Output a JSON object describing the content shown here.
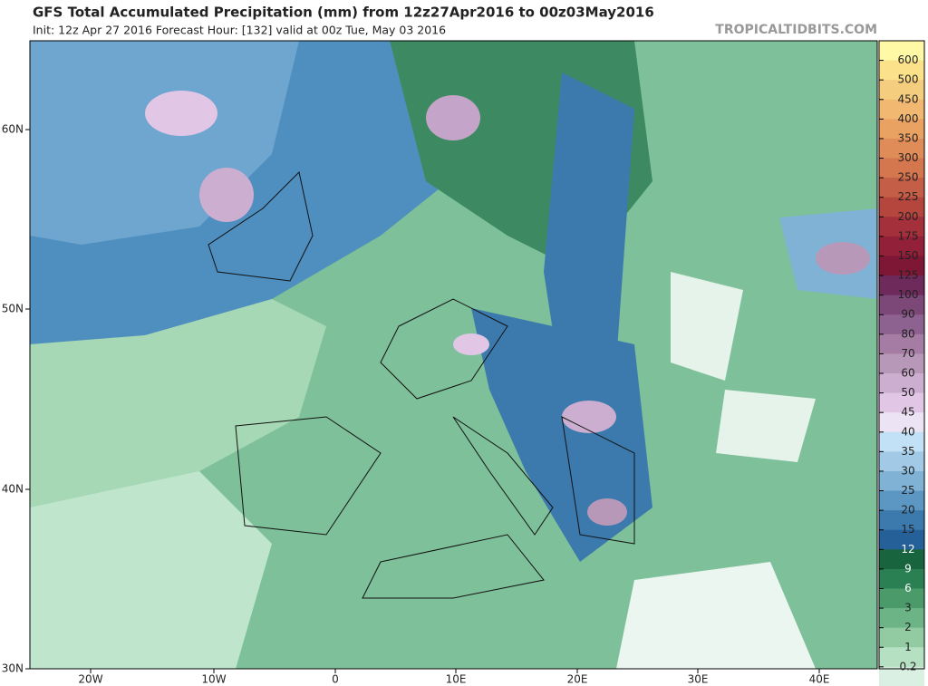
{
  "header": {
    "title": "GFS Total Accumulated Precipitation (mm) from 12z27Apr2016 to 00z03May2016",
    "subtitle": "Init: 12z Apr 27 2016   Forecast Hour: [132]   valid at 00z Tue, May 03 2016",
    "brand": "TROPICALTIDBITS.COM"
  },
  "axes": {
    "lat_labels": [
      "60N",
      "50N",
      "40N",
      "30N"
    ],
    "lon_labels": [
      "20W",
      "10W",
      "0",
      "10E",
      "20E",
      "30E",
      "40E"
    ]
  },
  "legend": {
    "levels": [
      {
        "label": "600",
        "color": "#fbe28a"
      },
      {
        "label": "500",
        "color": "#f5cd7e"
      },
      {
        "label": "450",
        "color": "#f0b870"
      },
      {
        "label": "400",
        "color": "#eaa262"
      },
      {
        "label": "350",
        "color": "#e08c58"
      },
      {
        "label": "300",
        "color": "#d4764e"
      },
      {
        "label": "250",
        "color": "#c45e46"
      },
      {
        "label": "225",
        "color": "#b4463e"
      },
      {
        "label": "200",
        "color": "#a3303a"
      },
      {
        "label": "175",
        "color": "#922038"
      },
      {
        "label": "150",
        "color": "#7e1636"
      },
      {
        "label": "125",
        "color": "#6e2a5a"
      },
      {
        "label": "100",
        "color": "#7c4878"
      },
      {
        "label": "90",
        "color": "#8e6290"
      },
      {
        "label": "80",
        "color": "#a47ca4"
      },
      {
        "label": "70",
        "color": "#b898b8"
      },
      {
        "label": "60",
        "color": "#ccaed0"
      },
      {
        "label": "50",
        "color": "#e2c6e6"
      },
      {
        "label": "45",
        "color": "#ece4f4"
      },
      {
        "label": "40",
        "color": "#c2e0f6"
      },
      {
        "label": "35",
        "color": "#a2cae6"
      },
      {
        "label": "30",
        "color": "#80b2d6"
      },
      {
        "label": "25",
        "color": "#5c96c2"
      },
      {
        "label": "20",
        "color": "#3c7aae"
      },
      {
        "label": "15",
        "color": "#266098"
      },
      {
        "label": "12",
        "color": "#17643e"
      },
      {
        "label": "9",
        "color": "#2a8052"
      },
      {
        "label": "6",
        "color": "#4a9a6a"
      },
      {
        "label": "3",
        "color": "#6cb486"
      },
      {
        "label": "2",
        "color": "#92caa2"
      },
      {
        "label": "1",
        "color": "#b6e0c2"
      },
      {
        "label": "0.2",
        "color": "#daf0e2"
      }
    ]
  }
}
